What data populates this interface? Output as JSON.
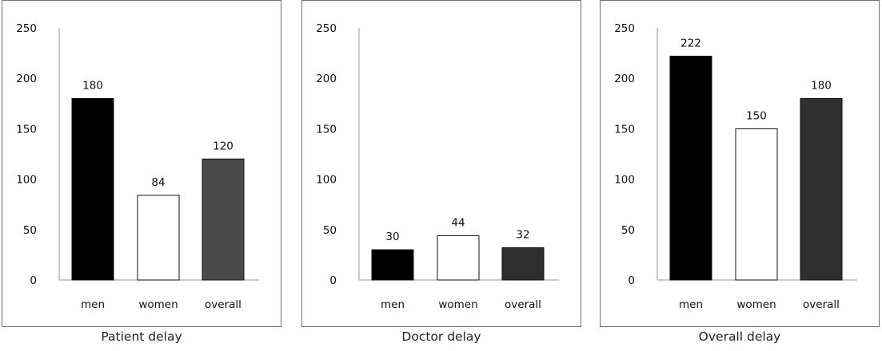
{
  "chart_data": [
    {
      "type": "bar",
      "title": "Patient delay",
      "categories": [
        "men",
        "women",
        "overall"
      ],
      "values": [
        180,
        84,
        120
      ],
      "data_labels": [
        "180",
        "84",
        "120"
      ],
      "yticks": [
        "0",
        "50",
        "100",
        "150",
        "200",
        "250"
      ],
      "ylim": [
        0,
        250
      ],
      "bar_colors": [
        "#000000",
        "#ffffff",
        "#4a4a4a"
      ],
      "grid": false,
      "legend": "none"
    },
    {
      "type": "bar",
      "title": "Doctor delay",
      "categories": [
        "men",
        "women",
        "overall"
      ],
      "values": [
        30,
        44,
        32
      ],
      "data_labels": [
        "30",
        "44",
        "32"
      ],
      "yticks": [
        "0",
        "50",
        "100",
        "150",
        "200",
        "250"
      ],
      "ylim": [
        0,
        250
      ],
      "bar_colors": [
        "#000000",
        "#ffffff",
        "#2f2f2f"
      ],
      "grid": false,
      "legend": "none"
    },
    {
      "type": "bar",
      "title": "Overall delay",
      "categories": [
        "men",
        "women",
        "overall"
      ],
      "values": [
        222,
        150,
        180
      ],
      "data_labels": [
        "222",
        "150",
        "180"
      ],
      "yticks": [
        "0",
        "50",
        "100",
        "150",
        "200",
        "250"
      ],
      "ylim": [
        0,
        250
      ],
      "bar_colors": [
        "#000000",
        "#ffffff",
        "#2f2f2f"
      ],
      "grid": false,
      "legend": "none"
    }
  ]
}
